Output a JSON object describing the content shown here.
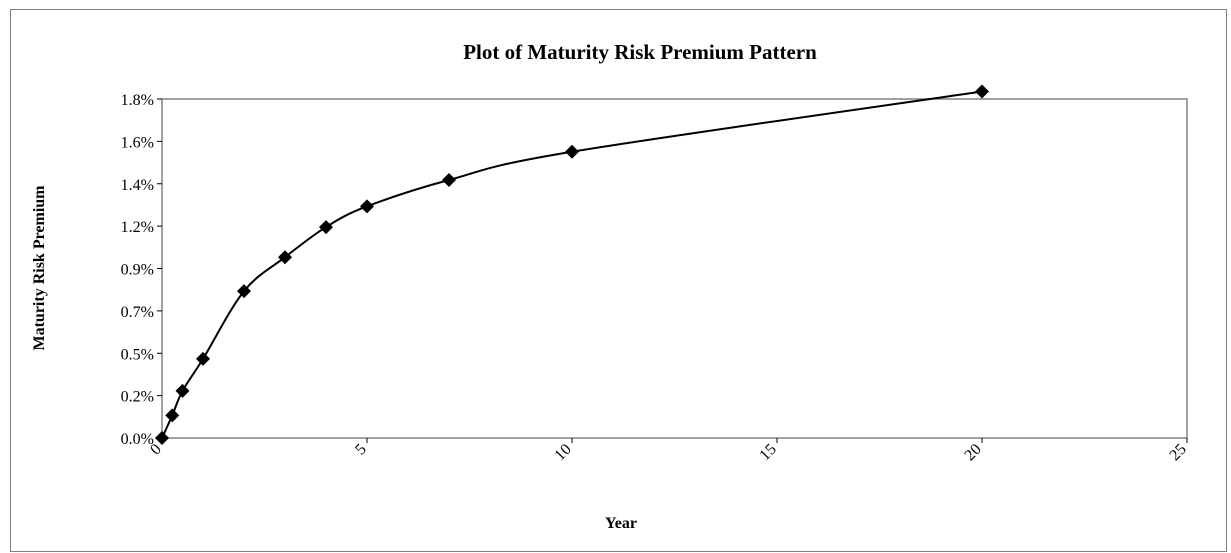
{
  "chart_data": {
    "type": "scatter",
    "title": "Plot of Maturity Risk Premium Pattern",
    "xlabel": "Year",
    "ylabel": "Maturity Risk Premium",
    "xlim": [
      0,
      25
    ],
    "ylim": [
      0,
      1.8
    ],
    "x_ticks": [
      "0",
      "5",
      "10",
      "15",
      "20",
      "25"
    ],
    "y_ticks": [
      "0.0%",
      "0.2%",
      "0.5%",
      "0.7%",
      "0.9%",
      "1.2%",
      "1.4%",
      "1.6%",
      "1.8%"
    ],
    "grid": false,
    "legend": "none",
    "line": "smoothed",
    "marker": "diamond",
    "series": [
      {
        "x": [
          0,
          0.25,
          0.5,
          1,
          2,
          3,
          4,
          5,
          7,
          10,
          20
        ],
        "y": [
          0.0,
          0.12,
          0.25,
          0.42,
          0.78,
          0.96,
          1.12,
          1.23,
          1.37,
          1.52,
          1.84
        ]
      }
    ],
    "colors": {
      "line": "#000000",
      "marker": "#000000",
      "plot_border": "#808080",
      "frame_border": "#7f7f7f"
    }
  }
}
